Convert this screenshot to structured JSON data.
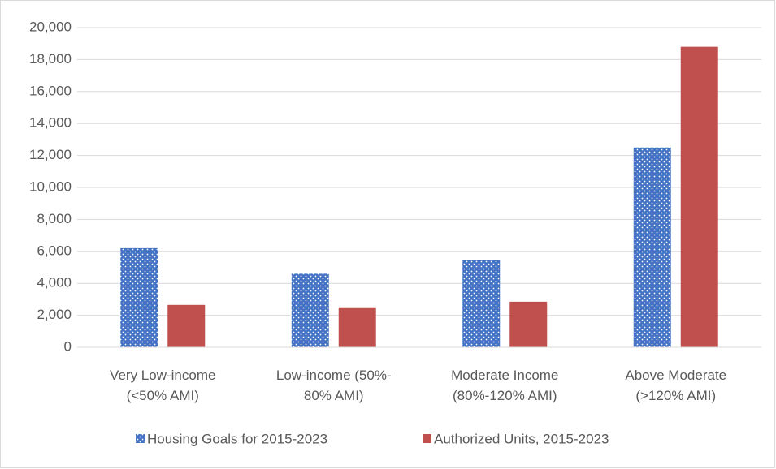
{
  "chart_data": {
    "type": "bar",
    "categories": [
      "Very Low-income\n(<50% AMI)",
      "Low-income (50%-\n80% AMI)",
      "Moderate Income\n(80%-120% AMI)",
      "Above Moderate\n(>120% AMI)"
    ],
    "series": [
      {
        "name": "Housing Goals for 2015-2023",
        "color": "#4472c4",
        "pattern": "dots",
        "values": [
          6200,
          4600,
          5450,
          12500
        ]
      },
      {
        "name": "Authorized Units, 2015-2023",
        "color": "#c0504d",
        "values": [
          2650,
          2500,
          2850,
          18800
        ]
      }
    ],
    "ylim": [
      0,
      20000
    ],
    "yticks": [
      0,
      {
        "value": 2000,
        "label": "2,000"
      },
      {
        "value": 4000,
        "label": "4,000"
      },
      {
        "value": 6000,
        "label": "6,000"
      },
      {
        "value": 8000,
        "label": "8,000"
      },
      {
        "value": 10000,
        "label": "10,000"
      },
      {
        "value": 12000,
        "label": "12,000"
      },
      {
        "value": 14000,
        "label": "14,000"
      },
      {
        "value": 16000,
        "label": "16,000"
      },
      {
        "value": 18000,
        "label": "18,000"
      },
      {
        "value": 20000,
        "label": "20,000"
      }
    ],
    "grid": true,
    "legend": "bottom"
  }
}
